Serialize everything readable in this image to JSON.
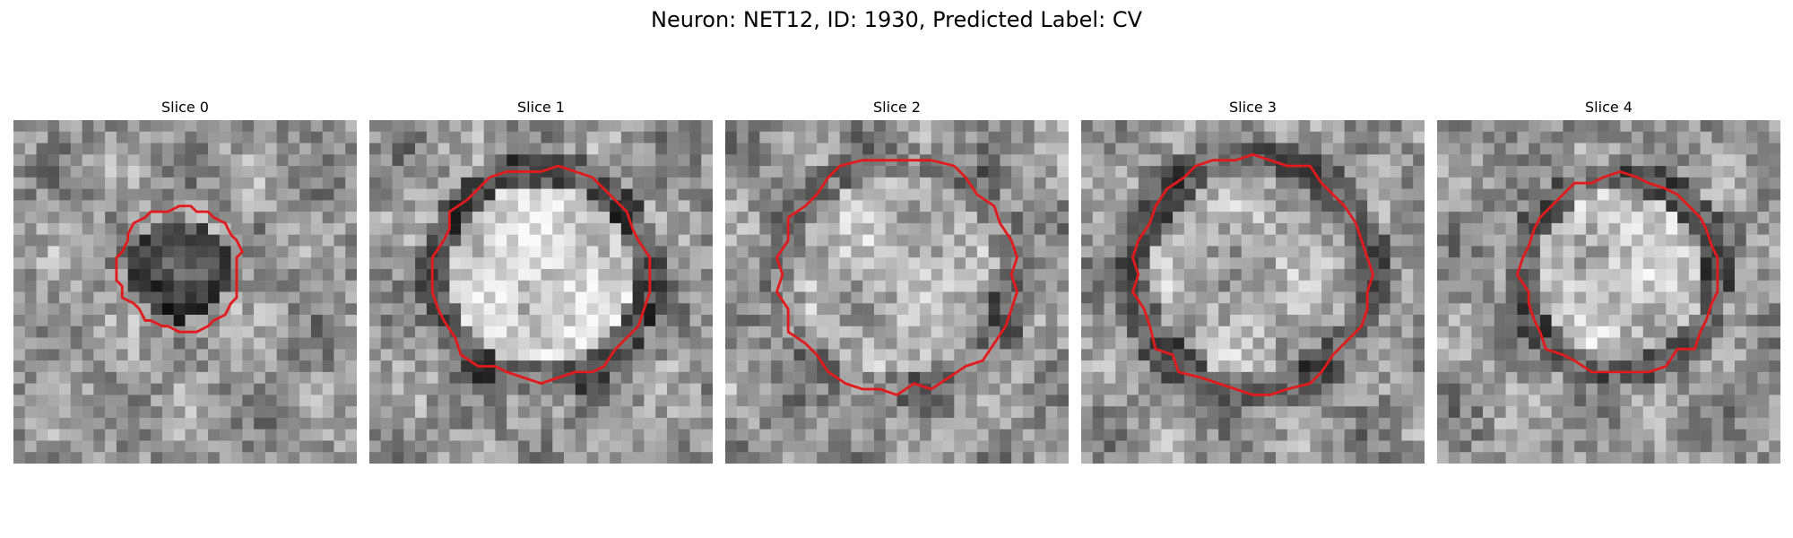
{
  "figure": {
    "title": "Neuron: NET12, ID: 1930, Predicted Label: CV"
  },
  "panels": [
    {
      "title": "Slice 0"
    },
    {
      "title": "Slice 1"
    },
    {
      "title": "Slice 2"
    },
    {
      "title": "Slice 3"
    },
    {
      "title": "Slice 4"
    }
  ],
  "colors": {
    "contour": "#e31a1c"
  }
}
